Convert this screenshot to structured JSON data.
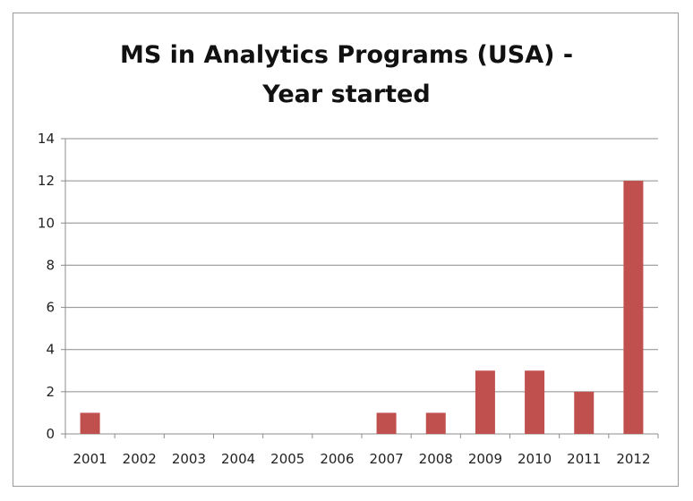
{
  "chart_data": {
    "type": "bar",
    "title_lines": [
      "MS in Analytics Programs (USA) -",
      "Year started"
    ],
    "categories": [
      "2001",
      "2002",
      "2003",
      "2004",
      "2005",
      "2006",
      "2007",
      "2008",
      "2009",
      "2010",
      "2011",
      "2012"
    ],
    "series": [
      {
        "values": [
          1,
          0,
          0,
          0,
          0,
          0,
          1,
          1,
          3,
          3,
          2,
          12
        ]
      }
    ],
    "ylim": [
      0,
      14
    ],
    "yticks": [
      "0",
      "2",
      "4",
      "6",
      "8",
      "10",
      "12",
      "14"
    ],
    "grid": true,
    "legend": false,
    "bar_color": "#c0504d",
    "grid_color": "#8c8c8c"
  }
}
